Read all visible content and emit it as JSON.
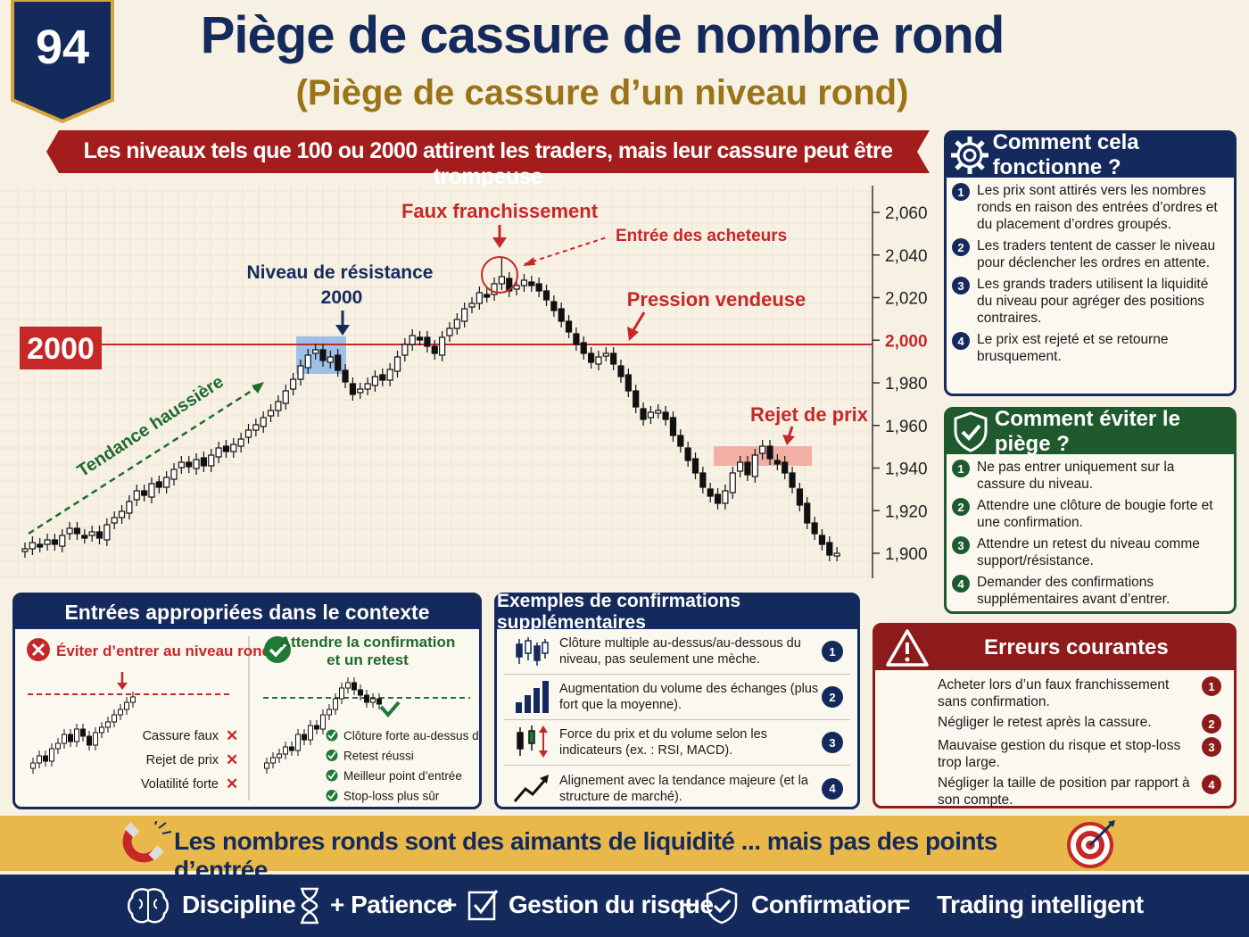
{
  "badge": {
    "number": "94"
  },
  "title": "Piège de cassure de nombre rond",
  "subtitle": "(Piège de cassure d’un niveau rond)",
  "ribbon": "Les niveaux tels que 100 ou 2000 attirent les traders, mais leur cassure peut être trompeuse",
  "chart": {
    "level_tag": "2000",
    "level_price": 2000,
    "yticks": [
      "2,060",
      "2,040",
      "2,020",
      "2,000",
      "1,980",
      "1,960",
      "1,940",
      "1,920",
      "1,900"
    ],
    "annotations": {
      "trend": "Tendance haussière",
      "resistance_line1": "Niveau de résistance",
      "resistance_line2": "2000",
      "false_break": "Faux franchissement",
      "buyers": "Entrée des acheteurs",
      "sell_pressure": "Pression vendeuse",
      "rejection": "Rejet de prix"
    },
    "colors": {
      "bull": "#ffffff",
      "bear": "#111111",
      "level": "#c62828",
      "trend": "#1f6b2f"
    }
  },
  "how": {
    "title": "Comment cela fonctionne ?",
    "items": [
      {
        "n": "1",
        "text": "Les prix sont attirés vers les nombres ronds en raison des entrées d’ordres et du placement d’ordres groupés."
      },
      {
        "n": "2",
        "text": "Les traders tentent de casser le niveau pour déclencher les ordres en attente."
      },
      {
        "n": "3",
        "text": "Les grands traders utilisent la liquidité du niveau pour agréger des positions contraires."
      },
      {
        "n": "4",
        "text": "Le prix est rejeté et se retourne brusquement."
      }
    ]
  },
  "avoid": {
    "title": "Comment éviter le piège ?",
    "items": [
      {
        "n": "1",
        "text": "Ne pas entrer uniquement sur la cassure du niveau."
      },
      {
        "n": "2",
        "text": "Attendre une clôture de bougie forte et une confirmation."
      },
      {
        "n": "3",
        "text": "Attendre un retest du niveau comme support/résistance."
      },
      {
        "n": "4",
        "text": "Demander des confirmations supplémentaires avant d’entrer."
      }
    ]
  },
  "errors": {
    "title": "Erreurs courantes",
    "items": [
      {
        "n": "1",
        "text": "Acheter lors d’un faux franchissement sans confirmation."
      },
      {
        "n": "2",
        "text": "Négliger le retest après la cassure."
      },
      {
        "n": "3",
        "text": "Mauvaise gestion du risque et stop-loss trop large."
      },
      {
        "n": "4",
        "text": "Négliger la taille de position par rapport à son compte."
      }
    ]
  },
  "context": {
    "title": "Entrées appropriées dans le contexte",
    "bad_title": "Éviter d’entrer au niveau rond",
    "bad_items": [
      "Cassure faux",
      "Rejet de prix",
      "Volatilité forte"
    ],
    "good_title_1": "Attendre la confirmation",
    "good_title_2": "et un retest",
    "good_items": [
      "Clôture forte au-dessus du niveau",
      "Retest réussi",
      "Meilleur point d’entrée",
      "Stop-loss plus sûr"
    ]
  },
  "confirm": {
    "title": "Exemples de confirmations supplémentaires",
    "items": [
      {
        "n": "1",
        "icon": "candles-icon",
        "text": "Clôture multiple au-dessus/au-dessous du niveau, pas seulement une mèche."
      },
      {
        "n": "2",
        "icon": "volume-bars-icon",
        "text": "Augmentation du volume des échanges (plus fort que la moyenne)."
      },
      {
        "n": "3",
        "icon": "indicator-icon",
        "text": "Force du prix et du volume selon les indicateurs (ex. : RSI, MACD)."
      },
      {
        "n": "4",
        "icon": "trend-arrow-icon",
        "text": "Alignement avec la tendance majeure (et la structure de marché)."
      }
    ]
  },
  "tagline": "Les nombres ronds sont des aimants de liquidité ... mais pas des points d’entrée.",
  "footer": {
    "discipline": "Discipline",
    "patience": "+ Patience",
    "plus1": "+",
    "risk": "Gestion du risque",
    "plus2": "+",
    "confirmation": "Confirmation",
    "equals": "=",
    "result": "Trading intelligent"
  }
}
